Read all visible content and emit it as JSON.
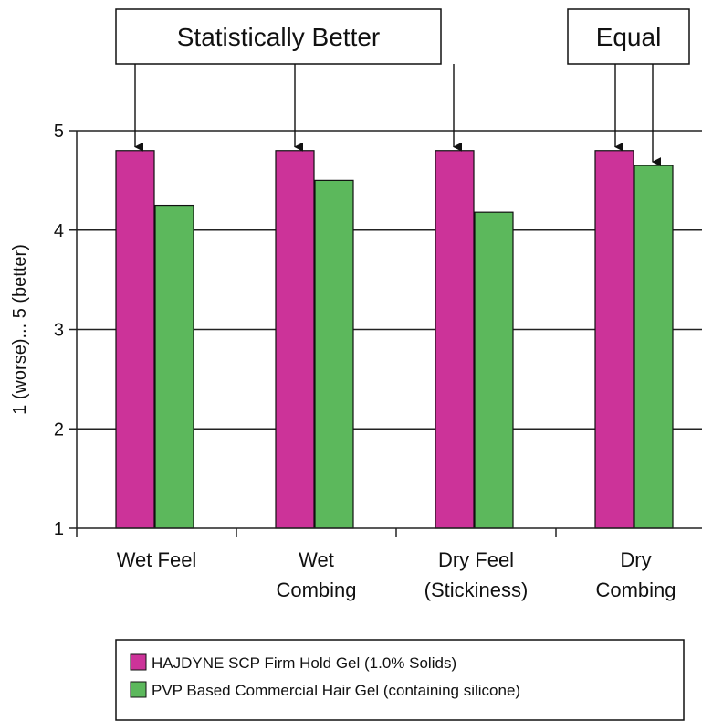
{
  "chart_data": {
    "type": "bar",
    "categories": [
      [
        "Wet Feel"
      ],
      [
        "Wet",
        "Combing"
      ],
      [
        "Dry Feel",
        "(Stickiness)"
      ],
      [
        "Dry",
        "Combing"
      ]
    ],
    "series": [
      {
        "name": "HAJDYNE SCP Firm Hold Gel (1.0% Solids)",
        "color": "#cc3399",
        "values": [
          4.8,
          4.8,
          4.8,
          4.8
        ]
      },
      {
        "name": "PVP Based Commercial Hair Gel (containing silicone)",
        "color": "#5cb85c",
        "values": [
          4.25,
          4.5,
          4.18,
          4.65
        ]
      }
    ],
    "ylabel": "1 (worse)... 5 (better)",
    "ylim": [
      1,
      5
    ],
    "yticks": [
      "1",
      "2",
      "3",
      "4",
      "5"
    ],
    "grid": true,
    "legend": "bottom",
    "annotations": [
      {
        "text": "Statistically Better",
        "targets": [
          0,
          1,
          2
        ]
      },
      {
        "text": "Equal",
        "targets": [
          3
        ]
      }
    ]
  }
}
